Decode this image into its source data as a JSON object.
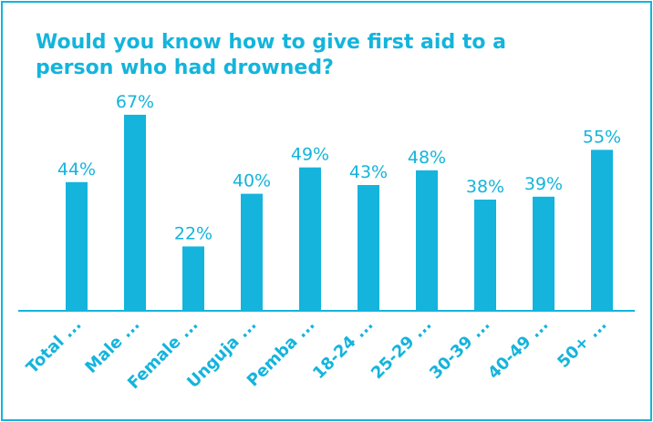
{
  "chart_data": {
    "type": "bar",
    "title": "Would you know how to give first aid to a person who had drowned?",
    "categories": [
      "Total ...",
      "Male ...",
      "Female ...",
      "Unguja ...",
      "Pemba ...",
      "18-24 ...",
      "25-29 ...",
      "30-39 ...",
      "40-49 ...",
      "50+ ..."
    ],
    "values": [
      44,
      67,
      22,
      40,
      49,
      43,
      48,
      38,
      39,
      55
    ],
    "value_labels": [
      "44%",
      "67%",
      "22%",
      "40%",
      "49%",
      "43%",
      "48%",
      "38%",
      "39%",
      "55%"
    ],
    "xlabel": "",
    "ylabel": "",
    "ylim": [
      0,
      100
    ],
    "grid": false,
    "legend": "none",
    "bar_color": "#14b4dc"
  }
}
